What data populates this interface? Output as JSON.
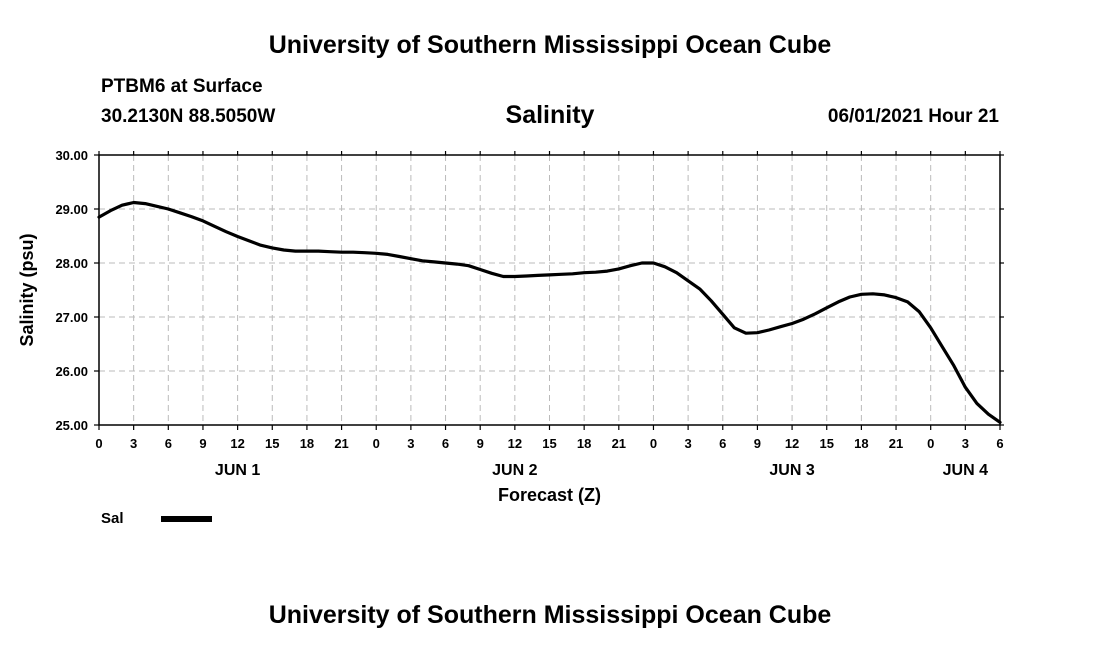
{
  "header": {
    "title_top": "University of Southern Mississippi Ocean Cube",
    "station": "PTBM6 at Surface",
    "coords": "30.2130N  88.5050W",
    "variable": "Salinity",
    "datetime": "06/01/2021 Hour 21",
    "title_bottom": "University of Southern Mississippi Ocean Cube"
  },
  "legend": {
    "label": "Sal",
    "color": "#000000"
  },
  "chart_data": {
    "type": "line",
    "title": "Salinity",
    "xlabel": "Forecast (Z)",
    "ylabel": "Salinity (psu)",
    "ylim": [
      25.0,
      30.0
    ],
    "y_ticks": [
      "25.00",
      "26.00",
      "27.00",
      "28.00",
      "29.00",
      "30.00"
    ],
    "x_tick_labels": [
      "0",
      "3",
      "6",
      "9",
      "12",
      "15",
      "18",
      "21",
      "0",
      "3",
      "6",
      "9",
      "12",
      "15",
      "18",
      "21",
      "0",
      "3",
      "6",
      "9",
      "12",
      "15",
      "18",
      "21",
      "0",
      "3",
      "6"
    ],
    "day_labels": [
      {
        "label": "JUN 1",
        "at_tick": 4
      },
      {
        "label": "JUN 2",
        "at_tick": 12
      },
      {
        "label": "JUN 3",
        "at_tick": 20
      },
      {
        "label": "JUN 4",
        "at_tick": 25
      }
    ],
    "grid": true,
    "series": [
      {
        "name": "Sal",
        "x_hours": [
          0,
          1,
          2,
          3,
          4,
          5,
          6,
          7,
          8,
          9,
          10,
          11,
          12,
          13,
          14,
          15,
          16,
          17,
          18,
          19,
          20,
          21,
          22,
          23,
          24,
          25,
          26,
          27,
          28,
          29,
          30,
          31,
          32,
          33,
          34,
          35,
          36,
          37,
          38,
          39,
          40,
          41,
          42,
          43,
          44,
          45,
          46,
          47,
          48,
          49,
          50,
          51,
          52,
          53,
          54,
          55,
          56,
          57,
          58,
          59,
          60,
          61,
          62,
          63,
          64,
          65,
          66,
          67,
          68,
          69,
          70,
          71,
          72,
          73,
          74,
          75,
          76,
          77,
          78
        ],
        "values": [
          28.85,
          28.97,
          29.07,
          29.12,
          29.1,
          29.05,
          29.0,
          28.93,
          28.86,
          28.78,
          28.68,
          28.58,
          28.49,
          28.41,
          28.33,
          28.28,
          28.24,
          28.22,
          28.22,
          28.22,
          28.21,
          28.2,
          28.2,
          28.19,
          28.18,
          28.16,
          28.12,
          28.08,
          28.04,
          28.02,
          28.0,
          27.98,
          27.95,
          27.88,
          27.81,
          27.75,
          27.75,
          27.76,
          27.77,
          27.78,
          27.79,
          27.8,
          27.82,
          27.83,
          27.85,
          27.89,
          27.95,
          28.0,
          28.0,
          27.93,
          27.82,
          27.67,
          27.52,
          27.3,
          27.05,
          26.8,
          26.7,
          26.71,
          26.76,
          26.82,
          26.88,
          26.96,
          27.06,
          27.17,
          27.28,
          27.37,
          27.42,
          27.43,
          27.41,
          27.36,
          27.28,
          27.1,
          26.8,
          26.45,
          26.1,
          25.7,
          25.4,
          25.2,
          25.05
        ]
      }
    ]
  }
}
